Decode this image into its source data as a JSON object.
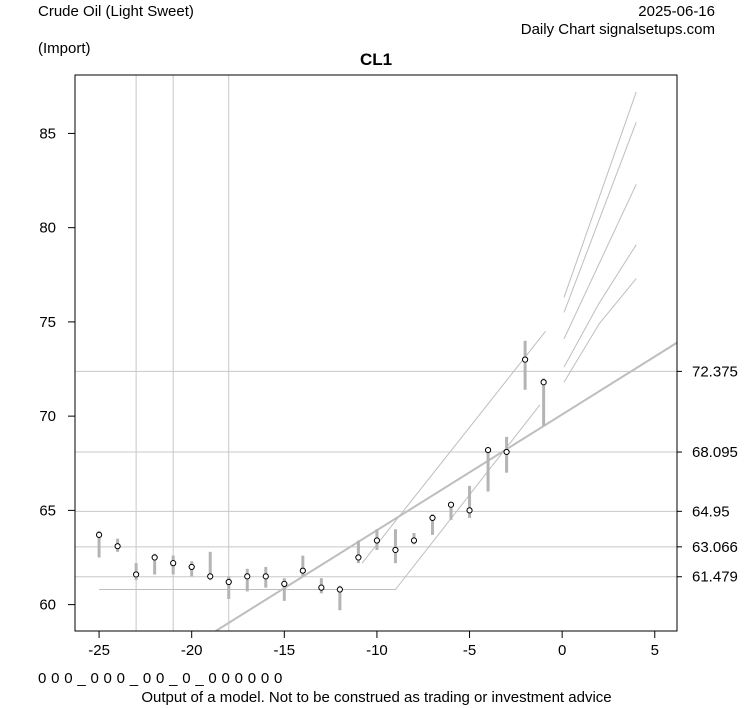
{
  "header": {
    "instrument": "Crude Oil (Light Sweet)",
    "source": "(Import)",
    "date": "2025-06-16",
    "chart_type": "Daily Chart signalsetups.com"
  },
  "footer": {
    "code_row": "0 0 0 _ 0 0 0 _ 0 0 _ 0 _ 0 0 0 0 0 0",
    "disclaimer": "Output of a model. Not to be construed as trading or investment advice"
  },
  "chart_data": {
    "type": "scatter",
    "title": "CL1",
    "xlabel": "",
    "ylabel": "",
    "xlim": [
      -26.3,
      6.2
    ],
    "ylim": [
      58.6,
      88.1
    ],
    "x_ticks": [
      -25,
      -20,
      -15,
      -10,
      -5,
      0,
      5
    ],
    "y_ticks": [
      60,
      65,
      70,
      75,
      80,
      85
    ],
    "points": [
      {
        "x": -25,
        "y": 63.7,
        "lo": 62.5,
        "hi": 63.9
      },
      {
        "x": -24,
        "y": 63.1,
        "lo": 62.8,
        "hi": 63.5
      },
      {
        "x": -23,
        "y": 61.6,
        "lo": 61.3,
        "hi": 62.2
      },
      {
        "x": -22,
        "y": 62.5,
        "lo": 61.6,
        "hi": 62.7
      },
      {
        "x": -21,
        "y": 62.2,
        "lo": 61.6,
        "hi": 62.6
      },
      {
        "x": -20,
        "y": 62.0,
        "lo": 61.5,
        "hi": 62.3
      },
      {
        "x": -19,
        "y": 61.5,
        "lo": 61.3,
        "hi": 62.8
      },
      {
        "x": -18,
        "y": 61.2,
        "lo": 60.3,
        "hi": 61.5
      },
      {
        "x": -17,
        "y": 61.5,
        "lo": 60.7,
        "hi": 61.9
      },
      {
        "x": -16,
        "y": 61.5,
        "lo": 60.9,
        "hi": 62.0
      },
      {
        "x": -15,
        "y": 61.1,
        "lo": 60.2,
        "hi": 61.4
      },
      {
        "x": -14,
        "y": 61.8,
        "lo": 61.5,
        "hi": 62.6
      },
      {
        "x": -13,
        "y": 60.9,
        "lo": 60.6,
        "hi": 61.4
      },
      {
        "x": -12,
        "y": 60.8,
        "lo": 59.7,
        "hi": 61.0
      },
      {
        "x": -11,
        "y": 62.5,
        "lo": 62.2,
        "hi": 63.4
      },
      {
        "x": -10,
        "y": 63.4,
        "lo": 62.9,
        "hi": 64.0
      },
      {
        "x": -9,
        "y": 62.9,
        "lo": 62.2,
        "hi": 64.0
      },
      {
        "x": -8,
        "y": 63.4,
        "lo": 63.2,
        "hi": 63.8
      },
      {
        "x": -7,
        "y": 64.6,
        "lo": 63.7,
        "hi": 64.8
      },
      {
        "x": -6,
        "y": 65.3,
        "lo": 64.5,
        "hi": 65.4
      },
      {
        "x": -5,
        "y": 65.0,
        "lo": 64.6,
        "hi": 66.3
      },
      {
        "x": -4,
        "y": 68.2,
        "lo": 66.0,
        "hi": 68.2
      },
      {
        "x": -3,
        "y": 68.1,
        "lo": 67.0,
        "hi": 68.9
      },
      {
        "x": -2,
        "y": 73.0,
        "lo": 71.4,
        "hi": 74.0
      },
      {
        "x": -1,
        "y": 71.8,
        "lo": 69.5,
        "hi": 72.0
      }
    ],
    "horizontal_levels": [
      72.375,
      68.095,
      64.95,
      63.066,
      61.479
    ],
    "level_labels": [
      "72.375",
      "68.095",
      "64.95",
      "63.066",
      "61.479"
    ],
    "vertical_markers": [
      -23,
      -21,
      -18
    ],
    "trend_lines": [
      {
        "name": "regression",
        "x": [
          -18.7,
          6.2
        ],
        "y": [
          58.6,
          73.9
        ]
      },
      {
        "name": "channel-upper",
        "x": [
          -10.8,
          -0.9
        ],
        "y": [
          62.2,
          74.5
        ]
      },
      {
        "name": "channel-lower",
        "x": [
          -25,
          -9,
          -1.2
        ],
        "y": [
          60.8,
          60.8,
          70.6
        ]
      },
      {
        "name": "proj-1",
        "x": [
          0.1,
          4.0
        ],
        "y": [
          76.3,
          87.2
        ]
      },
      {
        "name": "proj-2",
        "x": [
          0.1,
          4.0
        ],
        "y": [
          75.5,
          85.6
        ]
      },
      {
        "name": "proj-3",
        "x": [
          0.1,
          4.0
        ],
        "y": [
          74.1,
          82.3
        ]
      },
      {
        "name": "proj-4",
        "x": [
          0.1,
          2.0,
          4.0
        ],
        "y": [
          72.6,
          76.0,
          79.1
        ]
      },
      {
        "name": "proj-5",
        "x": [
          0.1,
          2.0,
          4.0
        ],
        "y": [
          71.8,
          74.9,
          77.3
        ]
      }
    ],
    "colors": {
      "points": "#000000",
      "ranges": "#b4b4b4",
      "lines": "#bebebe",
      "levels": "#c8c8c8"
    }
  }
}
